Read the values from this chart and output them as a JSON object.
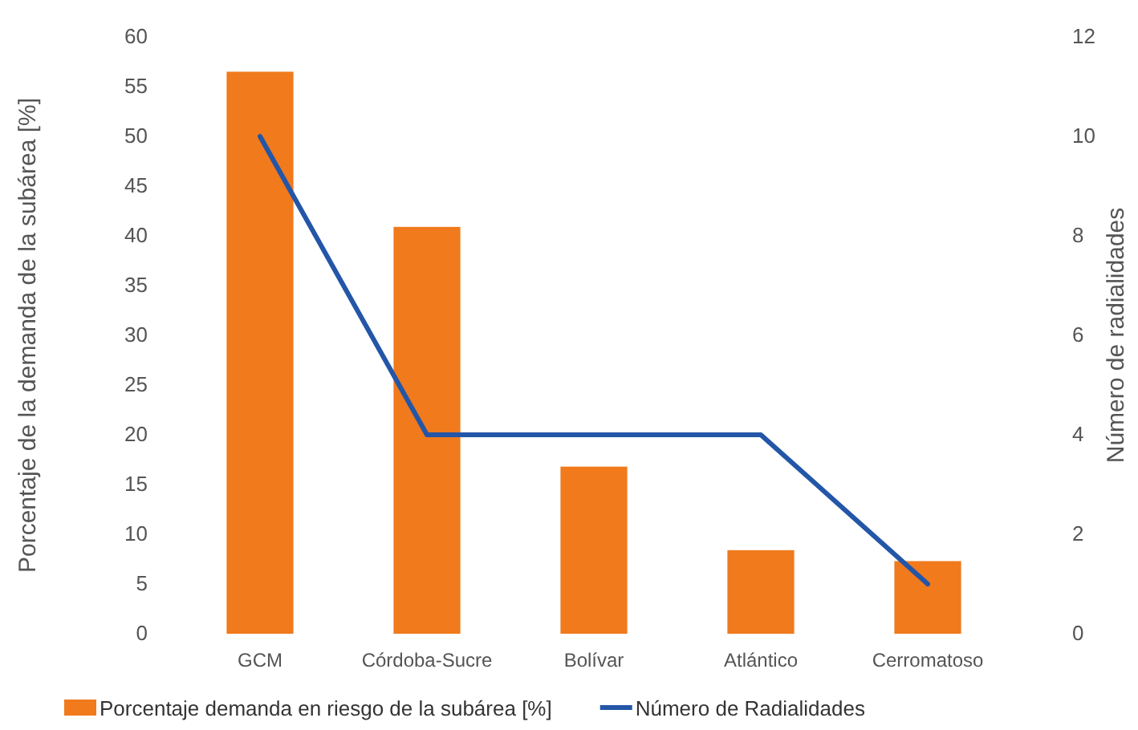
{
  "chart_data": {
    "type": "bar",
    "categories": [
      "GCM",
      "Córdoba-Sucre",
      "Bolívar",
      "Atlántico",
      "Cerromatoso"
    ],
    "ylabel": "Porcentaje de la demanda de la subárea [%]",
    "y2label": "Número de radialidades",
    "series": [
      {
        "name": "Porcentaje demanda en riesgo de la subárea [%]",
        "color": "#f07a1c",
        "values": [
          56.5,
          40.9,
          16.8,
          8.4,
          7.3
        ]
      },
      {
        "name": "Número de Radialidades",
        "type": "line",
        "axis": "y2",
        "color": "#2456a8",
        "values": [
          10,
          4,
          4,
          4,
          1
        ]
      }
    ],
    "ylim": [
      0,
      60
    ],
    "yticks": [
      0,
      5,
      10,
      15,
      20,
      25,
      30,
      35,
      40,
      45,
      50,
      55,
      60
    ],
    "y2lim": [
      0,
      12
    ],
    "y2ticks": [
      0,
      2,
      4,
      6,
      8,
      10,
      12
    ],
    "legend": "bottom",
    "grid": false
  }
}
